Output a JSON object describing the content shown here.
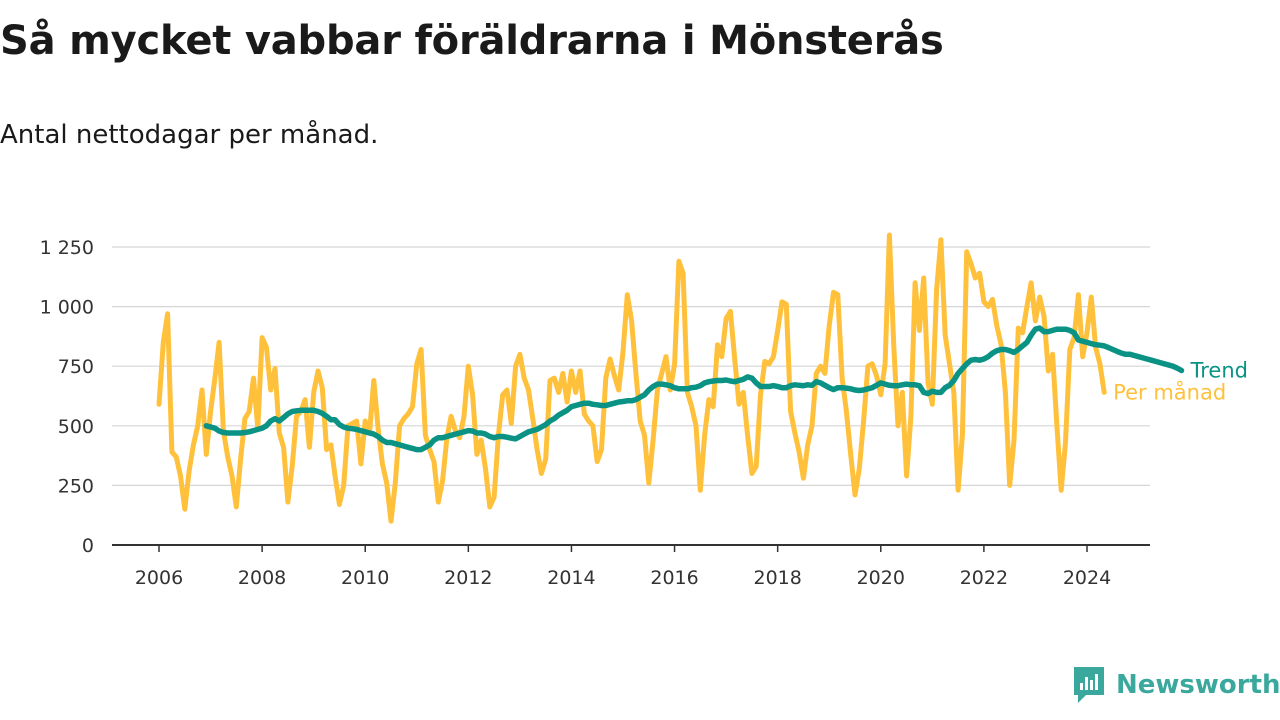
{
  "header": {
    "title": "Så mycket vabbar föräldrarna i Mönsterås",
    "subtitle": "Antal nettodagar per månad."
  },
  "brand": {
    "name": "Newsworthy",
    "color": "#3aa89d"
  },
  "chart_data": {
    "type": "line",
    "ylim": [
      0,
      1300
    ],
    "xlim": [
      2006,
      2024.4
    ],
    "yticks": [
      0,
      250,
      500,
      750,
      1000,
      1250
    ],
    "ytick_labels": [
      "0",
      "250",
      "500",
      "750",
      "1 000",
      "1 250"
    ],
    "xticks": [
      2006,
      2008,
      2010,
      2012,
      2014,
      2016,
      2018,
      2020,
      2022,
      2024
    ],
    "xtick_labels": [
      "2006",
      "2008",
      "2010",
      "2012",
      "2014",
      "2016",
      "2018",
      "2020",
      "2022",
      "2024"
    ],
    "grid": true,
    "legend": "inline-right",
    "series": [
      {
        "name": "Per månad",
        "color": "#ffc13b",
        "start": "2006-01",
        "values": [
          590,
          850,
          970,
          390,
          370,
          290,
          150,
          310,
          420,
          500,
          650,
          380,
          560,
          700,
          850,
          480,
          370,
          290,
          160,
          360,
          530,
          560,
          700,
          490,
          870,
          830,
          650,
          740,
          470,
          410,
          180,
          330,
          540,
          560,
          610,
          410,
          640,
          730,
          660,
          400,
          420,
          290,
          170,
          250,
          500,
          510,
          520,
          340,
          520,
          470,
          690,
          490,
          340,
          260,
          100,
          260,
          500,
          530,
          550,
          580,
          760,
          820,
          460,
          400,
          350,
          180,
          270,
          450,
          540,
          480,
          450,
          540,
          750,
          630,
          380,
          440,
          320,
          160,
          200,
          460,
          630,
          650,
          510,
          750,
          800,
          700,
          650,
          530,
          400,
          300,
          360,
          690,
          700,
          640,
          720,
          600,
          730,
          640,
          730,
          550,
          520,
          500,
          350,
          400,
          700,
          780,
          710,
          650,
          810,
          1050,
          940,
          720,
          520,
          460,
          260,
          440,
          650,
          720,
          790,
          650,
          760,
          1190,
          1140,
          640,
          580,
          500,
          230,
          460,
          610,
          580,
          840,
          790,
          950,
          980,
          780,
          590,
          640,
          460,
          300,
          330,
          630,
          770,
          760,
          790,
          900,
          1020,
          1010,
          560,
          470,
          390,
          280,
          420,
          500,
          720,
          750,
          720,
          920,
          1060,
          1050,
          700,
          560,
          380,
          210,
          320,
          520,
          750,
          760,
          710,
          630,
          760,
          1300,
          840,
          500,
          640,
          290,
          540,
          1100,
          900,
          1120,
          680,
          590,
          1070,
          1280,
          880,
          760,
          640,
          230,
          460,
          1230,
          1180,
          1120,
          1140,
          1020,
          1000,
          1030,
          920,
          840,
          640,
          250,
          440,
          910,
          890,
          1000,
          1100,
          940,
          1040,
          960,
          730,
          800,
          500,
          230,
          430,
          820,
          870,
          1050,
          790,
          890,
          1040,
          830,
          760,
          640
        ]
      },
      {
        "name": "Trend",
        "color": "#0a9384",
        "start": "2006-12",
        "values": [
          500,
          495,
          490,
          478,
          472,
          470,
          470,
          470,
          470,
          472,
          475,
          480,
          485,
          490,
          500,
          520,
          530,
          520,
          535,
          550,
          560,
          563,
          565,
          565,
          565,
          565,
          560,
          552,
          540,
          525,
          525,
          505,
          495,
          490,
          488,
          485,
          480,
          475,
          470,
          465,
          455,
          440,
          430,
          430,
          425,
          420,
          415,
          410,
          405,
          400,
          400,
          410,
          420,
          440,
          450,
          450,
          455,
          460,
          465,
          470,
          475,
          480,
          478,
          470,
          470,
          465,
          455,
          450,
          455,
          455,
          452,
          448,
          445,
          455,
          465,
          475,
          480,
          485,
          495,
          505,
          520,
          530,
          545,
          555,
          565,
          580,
          585,
          590,
          595,
          595,
          590,
          588,
          585,
          585,
          590,
          595,
          600,
          602,
          605,
          605,
          610,
          620,
          630,
          650,
          665,
          675,
          675,
          672,
          668,
          660,
          655,
          655,
          655,
          660,
          662,
          668,
          680,
          685,
          688,
          690,
          690,
          692,
          688,
          685,
          690,
          695,
          705,
          700,
          680,
          665,
          665,
          665,
          668,
          665,
          660,
          660,
          668,
          672,
          670,
          668,
          672,
          670,
          685,
          680,
          670,
          660,
          652,
          660,
          660,
          658,
          655,
          650,
          648,
          650,
          655,
          660,
          670,
          680,
          675,
          670,
          668,
          668,
          672,
          675,
          672,
          672,
          668,
          640,
          635,
          645,
          640,
          640,
          660,
          670,
          690,
          720,
          740,
          760,
          775,
          778,
          775,
          780,
          790,
          805,
          815,
          820,
          820,
          815,
          808,
          820,
          835,
          850,
          880,
          905,
          910,
          895,
          895,
          900,
          905,
          905,
          905,
          900,
          890,
          860,
          855,
          850,
          845,
          840,
          838,
          835,
          828,
          820,
          812,
          805,
          800,
          800,
          795,
          790,
          785,
          780,
          775,
          770,
          765,
          760,
          755,
          750,
          742,
          732
        ]
      }
    ]
  }
}
